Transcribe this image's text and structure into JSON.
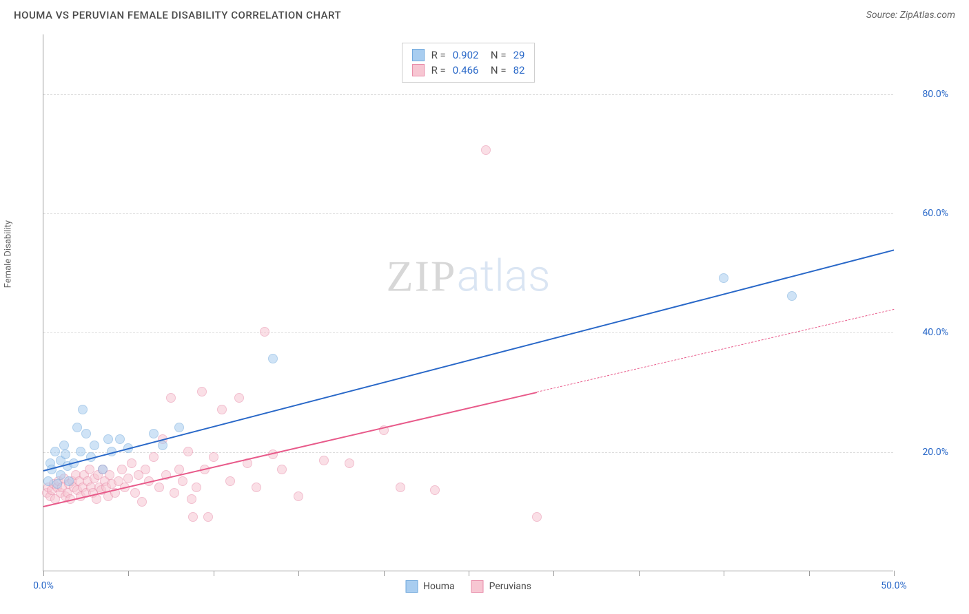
{
  "title": "HOUMA VS PERUVIAN FEMALE DISABILITY CORRELATION CHART",
  "source": "Source: ZipAtlas.com",
  "y_axis_label": "Female Disability",
  "chart": {
    "type": "scatter",
    "xlim": [
      0,
      50
    ],
    "ylim": [
      0,
      90
    ],
    "x_ticks": [
      0,
      5,
      10,
      15,
      20,
      25,
      30,
      35,
      40,
      45,
      50
    ],
    "x_tick_labels": {
      "0": "0.0%",
      "50": "50.0%"
    },
    "y_ticks": [
      20,
      40,
      60,
      80
    ],
    "y_tick_labels": {
      "20": "20.0%",
      "40": "40.0%",
      "60": "60.0%",
      "80": "80.0%"
    },
    "x_tick_label_color": "#2968c8",
    "y_tick_label_color": "#2968c8",
    "grid_color": "#dddddd",
    "axis_color": "#999999",
    "background_color": "#ffffff",
    "point_radius": 7,
    "point_opacity": 0.55,
    "series": [
      {
        "name": "Houma",
        "fill_color": "#a8cdf0",
        "stroke_color": "#6fa8dc",
        "R": "0.902",
        "N": "29",
        "trend": {
          "x1": 0,
          "y1": 17,
          "x2": 50,
          "y2": 54,
          "solid_until_x": 50,
          "color": "#2968c8",
          "width": 2
        },
        "points": [
          [
            0.3,
            15
          ],
          [
            0.4,
            18
          ],
          [
            0.5,
            17
          ],
          [
            0.7,
            20
          ],
          [
            0.8,
            14.5
          ],
          [
            1,
            16
          ],
          [
            1,
            18.5
          ],
          [
            1.2,
            21
          ],
          [
            1.3,
            19.5
          ],
          [
            1.4,
            17.5
          ],
          [
            1.5,
            15
          ],
          [
            1.8,
            18
          ],
          [
            2,
            24
          ],
          [
            2.2,
            20
          ],
          [
            2.3,
            27
          ],
          [
            2.5,
            23
          ],
          [
            2.8,
            19
          ],
          [
            3,
            21
          ],
          [
            3.5,
            17
          ],
          [
            3.8,
            22
          ],
          [
            4,
            20
          ],
          [
            4.5,
            22
          ],
          [
            5,
            20.5
          ],
          [
            6.5,
            23
          ],
          [
            7,
            21
          ],
          [
            8,
            24
          ],
          [
            13.5,
            35.5
          ],
          [
            40,
            49
          ],
          [
            44,
            46
          ]
        ]
      },
      {
        "name": "Peruvians",
        "fill_color": "#f7c6d2",
        "stroke_color": "#e88ba8",
        "R": "0.466",
        "N": "82",
        "trend": {
          "x1": 0,
          "y1": 11,
          "x2": 50,
          "y2": 44,
          "solid_until_x": 29,
          "color": "#e85a8a",
          "width": 2
        },
        "points": [
          [
            0.2,
            13
          ],
          [
            0.3,
            14
          ],
          [
            0.4,
            12.5
          ],
          [
            0.5,
            13.5
          ],
          [
            0.6,
            14.5
          ],
          [
            0.7,
            12
          ],
          [
            0.8,
            14
          ],
          [
            0.9,
            15
          ],
          [
            1,
            13
          ],
          [
            1.1,
            14
          ],
          [
            1.2,
            15.5
          ],
          [
            1.3,
            12.5
          ],
          [
            1.4,
            13
          ],
          [
            1.5,
            14.5
          ],
          [
            1.6,
            12
          ],
          [
            1.7,
            15
          ],
          [
            1.8,
            14
          ],
          [
            1.9,
            16
          ],
          [
            2,
            13.5
          ],
          [
            2.1,
            15
          ],
          [
            2.2,
            12.5
          ],
          [
            2.3,
            14
          ],
          [
            2.4,
            16
          ],
          [
            2.5,
            13
          ],
          [
            2.6,
            15
          ],
          [
            2.7,
            17
          ],
          [
            2.8,
            14
          ],
          [
            2.9,
            13
          ],
          [
            3,
            15.5
          ],
          [
            3.1,
            12
          ],
          [
            3.2,
            16
          ],
          [
            3.3,
            14
          ],
          [
            3.4,
            13.5
          ],
          [
            3.5,
            17
          ],
          [
            3.6,
            15
          ],
          [
            3.7,
            14
          ],
          [
            3.8,
            12.5
          ],
          [
            3.9,
            16
          ],
          [
            4,
            14.5
          ],
          [
            4.2,
            13
          ],
          [
            4.4,
            15
          ],
          [
            4.6,
            17
          ],
          [
            4.8,
            14
          ],
          [
            5,
            15.5
          ],
          [
            5.2,
            18
          ],
          [
            5.4,
            13
          ],
          [
            5.6,
            16
          ],
          [
            5.8,
            11.5
          ],
          [
            6,
            17
          ],
          [
            6.2,
            15
          ],
          [
            6.5,
            19
          ],
          [
            6.8,
            14
          ],
          [
            7,
            22
          ],
          [
            7.2,
            16
          ],
          [
            7.5,
            29
          ],
          [
            7.7,
            13
          ],
          [
            8,
            17
          ],
          [
            8.2,
            15
          ],
          [
            8.5,
            20
          ],
          [
            8.7,
            12
          ],
          [
            9,
            14
          ],
          [
            9.3,
            30
          ],
          [
            9.5,
            17
          ],
          [
            9.7,
            9
          ],
          [
            10,
            19
          ],
          [
            10.5,
            27
          ],
          [
            11,
            15
          ],
          [
            11.5,
            29
          ],
          [
            12,
            18
          ],
          [
            12.5,
            14
          ],
          [
            13,
            40
          ],
          [
            13.5,
            19.5
          ],
          [
            14,
            17
          ],
          [
            15,
            12.5
          ],
          [
            16.5,
            18.5
          ],
          [
            18,
            18
          ],
          [
            20,
            23.5
          ],
          [
            21,
            14
          ],
          [
            23,
            13.5
          ],
          [
            26,
            70.5
          ],
          [
            29,
            9
          ],
          [
            8.8,
            9
          ]
        ]
      }
    ],
    "legend": {
      "items": [
        {
          "label": "Houma",
          "swatch_fill": "#a8cdf0",
          "swatch_border": "#6fa8dc"
        },
        {
          "label": "Peruvians",
          "swatch_fill": "#f7c6d2",
          "swatch_border": "#e88ba8"
        }
      ]
    }
  },
  "watermark": {
    "part1": "ZIP",
    "part2": "atlas"
  }
}
